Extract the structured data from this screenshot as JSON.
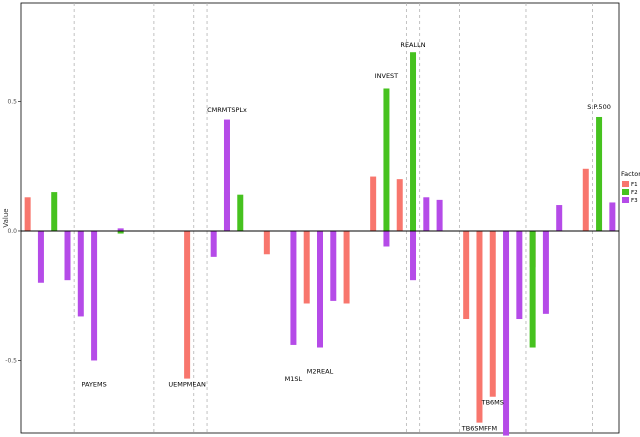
{
  "chart_data": {
    "type": "bar",
    "ylabel": "Value",
    "xlabel": "",
    "ylim": [
      -0.78,
      0.88
    ],
    "yticks": [
      -0.5,
      0.0,
      0.5
    ],
    "ytick_labels": [
      "-0.5",
      "0.0",
      "0.5"
    ],
    "grid": false,
    "vlines": "dashed vertical separators between variable groups",
    "legend": {
      "title": "Factor",
      "position": "right",
      "entries": [
        {
          "name": "F1",
          "color": "#F8766D"
        },
        {
          "name": "F2",
          "color": "#46C21F"
        },
        {
          "name": "F3",
          "color": "#B54BE8"
        }
      ]
    },
    "series": [
      {
        "name": "F1",
        "color": "#F8766D",
        "values": [
          0.13,
          0.0,
          0.0,
          0.0,
          0.0,
          0.0,
          0.0,
          0.0,
          0.0,
          0.0,
          0.0,
          0.0,
          -0.57,
          0.0,
          0.0,
          0.0,
          0.0,
          0.0,
          -0.09,
          0.0,
          0.0,
          -0.28,
          -0.29,
          0.0,
          -0.28,
          0.0,
          0.21,
          0.0,
          0.2,
          0.0,
          0.0,
          0.0,
          0.0,
          -0.34,
          -0.74,
          -0.64,
          0.0,
          0.0,
          -0.14,
          0.0,
          0.0,
          0.0,
          0.24,
          0.0,
          0.0
        ]
      },
      {
        "name": "F2",
        "color": "#46C21F",
        "values": [
          0.0,
          0.0,
          0.15,
          0.0,
          0.0,
          0.0,
          0.0,
          -0.01,
          0.0,
          0.0,
          0.0,
          0.0,
          0.0,
          0.0,
          0.0,
          0.15,
          0.14,
          0.0,
          0.0,
          0.0,
          0.0,
          0.0,
          0.0,
          0.0,
          0.0,
          0.0,
          0.0,
          0.55,
          0.0,
          0.69,
          0.0,
          0.0,
          0.0,
          0.0,
          0.0,
          0.0,
          0.0,
          0.0,
          -0.45,
          0.0,
          0.0,
          0.0,
          0.0,
          0.44,
          0.0
        ]
      },
      {
        "name": "F3",
        "color": "#B54BE8",
        "values": [
          0.0,
          -0.2,
          0.0,
          -0.19,
          -0.33,
          -0.5,
          0.0,
          0.01,
          0.0,
          0.0,
          0.0,
          0.0,
          0.0,
          0.0,
          -0.1,
          0.43,
          0.0,
          0.0,
          0.0,
          0.0,
          -0.44,
          0.0,
          -0.45,
          -0.27,
          0.0,
          0.0,
          0.0,
          -0.06,
          0.0,
          -0.19,
          0.13,
          0.12,
          0.0,
          0.0,
          0.0,
          0.0,
          -0.79,
          -0.34,
          0.0,
          -0.32,
          0.1,
          0.0,
          0.0,
          0.0,
          0.11
        ]
      }
    ],
    "annotations": [
      {
        "text": "PAYEMS",
        "x": 5,
        "y": -0.6
      },
      {
        "text": "UEMPMEAN",
        "x": 12,
        "y": -0.6
      },
      {
        "text": "CMRMTSPLx",
        "x": 15,
        "y": 0.46
      },
      {
        "text": "M1SL",
        "x": 20,
        "y": -0.58
      },
      {
        "text": "M2REAL",
        "x": 22,
        "y": -0.55
      },
      {
        "text": "INVEST",
        "x": 27,
        "y": 0.59
      },
      {
        "text": "REALLN",
        "x": 29,
        "y": 0.71
      },
      {
        "text": "TB6SMFFM",
        "x": 34,
        "y": -0.77
      },
      {
        "text": "TB6MS",
        "x": 35,
        "y": -0.67
      },
      {
        "text": "PPIFGS",
        "x": 36,
        "y": -0.82
      },
      {
        "text": "S.P.500",
        "x": 43,
        "y": 0.47
      }
    ],
    "group_boundaries": [
      3.5,
      9.5,
      12.5,
      13.5,
      28.5,
      29.5,
      32.5,
      37.5,
      42.5
    ]
  }
}
